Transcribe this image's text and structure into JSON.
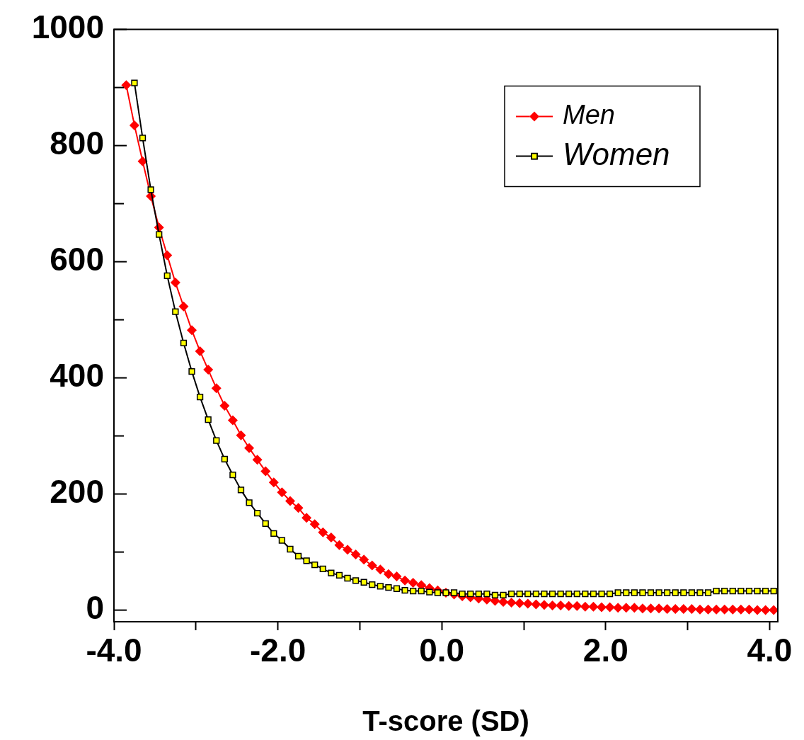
{
  "chart_data": {
    "type": "line",
    "xlabel": "T-score (SD)",
    "xlim": [
      -4,
      4.1
    ],
    "xticks": [
      {
        "value": -4,
        "label": "-4.0"
      },
      {
        "value": -3,
        "label": null
      },
      {
        "value": -2,
        "label": "-2.0"
      },
      {
        "value": -1,
        "label": null
      },
      {
        "value": 0,
        "label": "0.0"
      },
      {
        "value": 1,
        "label": null
      },
      {
        "value": 2,
        "label": "2.0"
      },
      {
        "value": 3,
        "label": null
      },
      {
        "value": 4,
        "label": "4.0"
      }
    ],
    "ylim": [
      -20,
      1000
    ],
    "yticks": [
      0,
      {
        "value": 100,
        "label": null
      },
      200,
      {
        "value": 300,
        "label": null
      },
      400,
      {
        "value": 500,
        "label": null
      },
      600,
      {
        "value": 700,
        "label": null
      },
      800,
      {
        "value": 900,
        "label": null
      },
      1000
    ],
    "grid": false,
    "legend": "top right",
    "line_style": "solid",
    "series": [
      {
        "name": "Men",
        "color": "#ff0000",
        "marker": "diamond",
        "x": [
          -3.85,
          -3.75,
          -3.65,
          -3.55,
          -3.45,
          -3.35,
          -3.25,
          -3.15,
          -3.05,
          -2.95,
          -2.85,
          -2.75,
          -2.65,
          -2.55,
          -2.45,
          -2.35,
          -2.25,
          -2.15,
          -2.05,
          -1.95,
          -1.85,
          -1.75,
          -1.65,
          -1.55,
          -1.45,
          -1.35,
          -1.25,
          -1.15,
          -1.05,
          -0.95,
          -0.85,
          -0.75,
          -0.65,
          -0.55,
          -0.45,
          -0.35,
          -0.25,
          -0.15,
          -0.05,
          0.05,
          0.15,
          0.25,
          0.35,
          0.45,
          0.55,
          0.65,
          0.75,
          0.85,
          0.95,
          1.05,
          1.15,
          1.25,
          1.35,
          1.45,
          1.55,
          1.65,
          1.75,
          1.85,
          1.95,
          2.05,
          2.15,
          2.25,
          2.35,
          2.45,
          2.55,
          2.65,
          2.75,
          2.85,
          2.95,
          3.05,
          3.15,
          3.25,
          3.35,
          3.45,
          3.55,
          3.65,
          3.75,
          3.85,
          3.95,
          4.05
        ],
        "values": [
          904,
          835,
          773,
          713,
          659,
          611,
          564,
          523,
          482,
          446,
          414,
          382,
          352,
          327,
          301,
          279,
          259,
          239,
          220,
          203,
          188,
          176,
          159,
          148,
          134,
          125,
          112,
          104,
          96,
          87,
          77,
          70,
          62,
          58,
          51,
          47,
          43,
          38,
          34,
          30,
          27,
          24,
          22,
          20,
          18,
          16,
          14,
          13,
          12,
          11,
          10,
          9,
          8,
          8,
          7,
          7,
          6,
          6,
          5,
          5,
          4,
          4,
          4,
          3,
          3,
          3,
          2,
          2,
          2,
          2,
          1,
          1,
          1,
          1,
          1,
          1,
          1,
          0,
          0,
          0
        ]
      },
      {
        "name": "Women",
        "color": "#ffff00",
        "marker": "square",
        "x": [
          -3.75,
          -3.65,
          -3.55,
          -3.45,
          -3.35,
          -3.25,
          -3.15,
          -3.05,
          -2.95,
          -2.85,
          -2.75,
          -2.65,
          -2.55,
          -2.45,
          -2.35,
          -2.25,
          -2.15,
          -2.05,
          -1.95,
          -1.85,
          -1.75,
          -1.65,
          -1.55,
          -1.45,
          -1.35,
          -1.25,
          -1.15,
          -1.05,
          -0.95,
          -0.85,
          -0.75,
          -0.65,
          -0.55,
          -0.45,
          -0.35,
          -0.25,
          -0.15,
          -0.05,
          0.05,
          0.15,
          0.25,
          0.35,
          0.45,
          0.55,
          0.65,
          0.75,
          0.85,
          0.95,
          1.05,
          1.15,
          1.25,
          1.35,
          1.45,
          1.55,
          1.65,
          1.75,
          1.85,
          1.95,
          2.05,
          2.15,
          2.25,
          2.35,
          2.45,
          2.55,
          2.65,
          2.75,
          2.85,
          2.95,
          3.05,
          3.15,
          3.25,
          3.35,
          3.45,
          3.55,
          3.65,
          3.75,
          3.85,
          3.95,
          4.05
        ],
        "values": [
          908,
          813,
          724,
          647,
          576,
          514,
          460,
          411,
          367,
          328,
          292,
          260,
          233,
          207,
          185,
          167,
          149,
          132,
          120,
          105,
          93,
          85,
          78,
          71,
          64,
          60,
          55,
          51,
          48,
          44,
          41,
          39,
          37,
          34,
          33,
          33,
          31,
          30,
          30,
          30,
          28,
          28,
          28,
          28,
          26,
          26,
          28,
          28,
          28,
          28,
          28,
          28,
          28,
          28,
          28,
          28,
          28,
          28,
          28,
          30,
          30,
          30,
          30,
          30,
          30,
          30,
          30,
          30,
          30,
          30,
          30,
          33,
          33,
          33,
          33,
          33,
          33,
          33,
          33
        ]
      }
    ]
  }
}
